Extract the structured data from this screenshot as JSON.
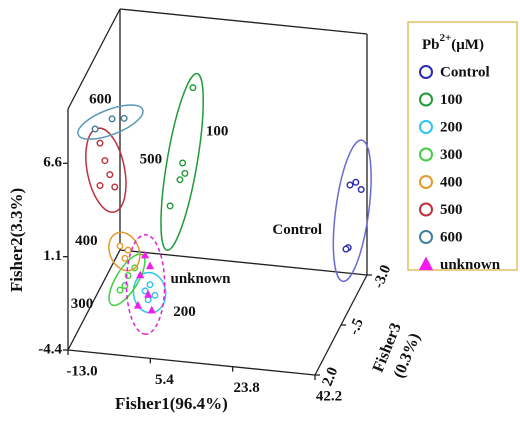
{
  "chart_data": {
    "type": "scatter3d",
    "xlabel": "Fisher1(96.4%)",
    "ylabel": "Fisher2(3.3%)",
    "zlabel": "Fisher3",
    "zlabel_sub": "(0.3%)",
    "xlim": [
      -13,
      42.2
    ],
    "ylim": [
      -4.4,
      9.8
    ],
    "zlim": [
      2,
      -3
    ],
    "xticks": [
      {
        "value": -13,
        "label": "-13.0"
      },
      5.4,
      23.8,
      42.2
    ],
    "yticks": [
      -4.4,
      1.1,
      6.6
    ],
    "zticks": [
      {
        "value": -3,
        "label": "-3.0"
      },
      {
        "value": -0.5,
        "label": "-.5"
      },
      {
        "value": 2,
        "label": "2.0"
      }
    ],
    "legend_title": "Pb",
    "legend_title_sup": "2+",
    "legend_title_unit": "(μM)",
    "legend": "right",
    "series": [
      {
        "name": "Control",
        "color": "#2b2bb0",
        "marker": "circle",
        "ellipse_color": "#6a6ad0",
        "ellipse_dash": false,
        "x": [
          38.4,
          39.7,
          40.9,
          38.0,
          37.5
        ],
        "y": [
          0.8,
          1.0,
          0.6,
          -2.9,
          -3.0
        ],
        "z": [
          -3,
          -3,
          -3,
          -3,
          -3
        ]
      },
      {
        "name": "100",
        "color": "#1f9a3a",
        "marker": "circle",
        "ellipse_color": "#1f9a3a",
        "ellipse_dash": false,
        "x": [
          3.3,
          1.0,
          1.5,
          0.4,
          -1.8
        ],
        "y": [
          5.6,
          1.1,
          0.5,
          0.1,
          -1.5
        ],
        "z": [
          -3,
          -3,
          -3,
          -3,
          -3
        ]
      },
      {
        "name": "200",
        "color": "#2fc4ea",
        "marker": "circle",
        "ellipse_color": "#2fc4ea",
        "ellipse_dash": false,
        "x": [
          1.9,
          3.0,
          4.1,
          2.6
        ],
        "y": [
          -1.7,
          -1.3,
          -1.9,
          -2.2
        ],
        "z": [
          1,
          1,
          1,
          1
        ]
      },
      {
        "name": "300",
        "color": "#3fcf3f",
        "marker": "circle",
        "ellipse_color": "#3fcf3f",
        "ellipse_dash": false,
        "x": [
          -3.7,
          -1.9,
          -0.4,
          -2.6
        ],
        "y": [
          -1.8,
          -0.9,
          -0.4,
          -1.5
        ],
        "z": [
          1,
          1,
          1,
          1
        ]
      },
      {
        "name": "400",
        "color": "#e39a2a",
        "marker": "circle",
        "ellipse_color": "#e39a2a",
        "ellipse_dash": false,
        "x": [
          -3.7,
          -1.9,
          -2.6
        ],
        "y": [
          0.8,
          0.6,
          0.1
        ],
        "z": [
          1,
          1,
          1
        ]
      },
      {
        "name": "500",
        "color": "#c0303a",
        "marker": "circle",
        "ellipse_color": "#c0303a",
        "ellipse_dash": false,
        "x": [
          -10.5,
          -9.4,
          -8.3,
          -10.5,
          -7.2
        ],
        "y": [
          5.5,
          4.5,
          3.7,
          3.0,
          3.0
        ],
        "z": [
          0,
          0,
          0,
          0,
          0
        ]
      },
      {
        "name": "600",
        "color": "#3f7fa0",
        "marker": "circle",
        "ellipse_color": "#5a9ab8",
        "ellipse_dash": false,
        "x": [
          -11.6,
          -7.8,
          -5.1
        ],
        "y": [
          6.3,
          7.0,
          7.1
        ],
        "z": [
          0,
          0,
          0
        ]
      },
      {
        "name": "unknown",
        "color": "#f01cf0",
        "marker": "triangle",
        "ellipse_color": "#e020d8",
        "ellipse_dash": true,
        "x": [
          1.9,
          3.0,
          0.8,
          2.6,
          0.3,
          3.4
        ],
        "y": [
          0.4,
          -0.2,
          -0.8,
          -1.9,
          -2.6,
          -2.8
        ],
        "z": [
          1,
          1,
          1,
          1,
          1,
          1
        ]
      }
    ]
  }
}
